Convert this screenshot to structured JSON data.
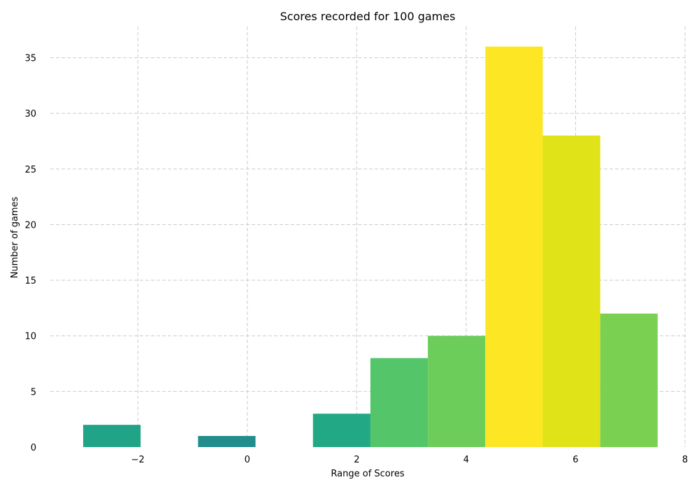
{
  "chart_data": {
    "type": "bar",
    "title": "Scores recorded for 100 games",
    "xlabel": "Range of Scores",
    "ylabel": "Number of games",
    "xlim": [
      -3.6,
      8
    ],
    "ylim": [
      0,
      37.8
    ],
    "xticks": [
      -2,
      0,
      2,
      4,
      6,
      8
    ],
    "xtick_labels": [
      "−2",
      "0",
      "2",
      "4",
      "6",
      "8"
    ],
    "yticks": [
      0,
      5,
      10,
      15,
      20,
      25,
      30,
      35
    ],
    "grid": true,
    "bins": [
      {
        "x0": -3.0,
        "x1": -1.95,
        "count": 2,
        "color": "#20a386"
      },
      {
        "x0": -1.95,
        "x1": -0.9,
        "count": 0,
        "color": "#20a386"
      },
      {
        "x0": -0.9,
        "x1": 0.15,
        "count": 1,
        "color": "#228d8d"
      },
      {
        "x0": 0.15,
        "x1": 1.2,
        "count": 0,
        "color": "#228d8d"
      },
      {
        "x0": 1.2,
        "x1": 2.25,
        "count": 3,
        "color": "#22a884"
      },
      {
        "x0": 2.25,
        "x1": 3.3,
        "count": 8,
        "color": "#54c568"
      },
      {
        "x0": 3.3,
        "x1": 4.35,
        "count": 10,
        "color": "#6ccd5a"
      },
      {
        "x0": 4.35,
        "x1": 5.4,
        "count": 36,
        "color": "#fde725"
      },
      {
        "x0": 5.4,
        "x1": 6.45,
        "count": 28,
        "color": "#dfe318"
      },
      {
        "x0": 6.45,
        "x1": 7.5,
        "count": 12,
        "color": "#7ad151"
      }
    ]
  }
}
